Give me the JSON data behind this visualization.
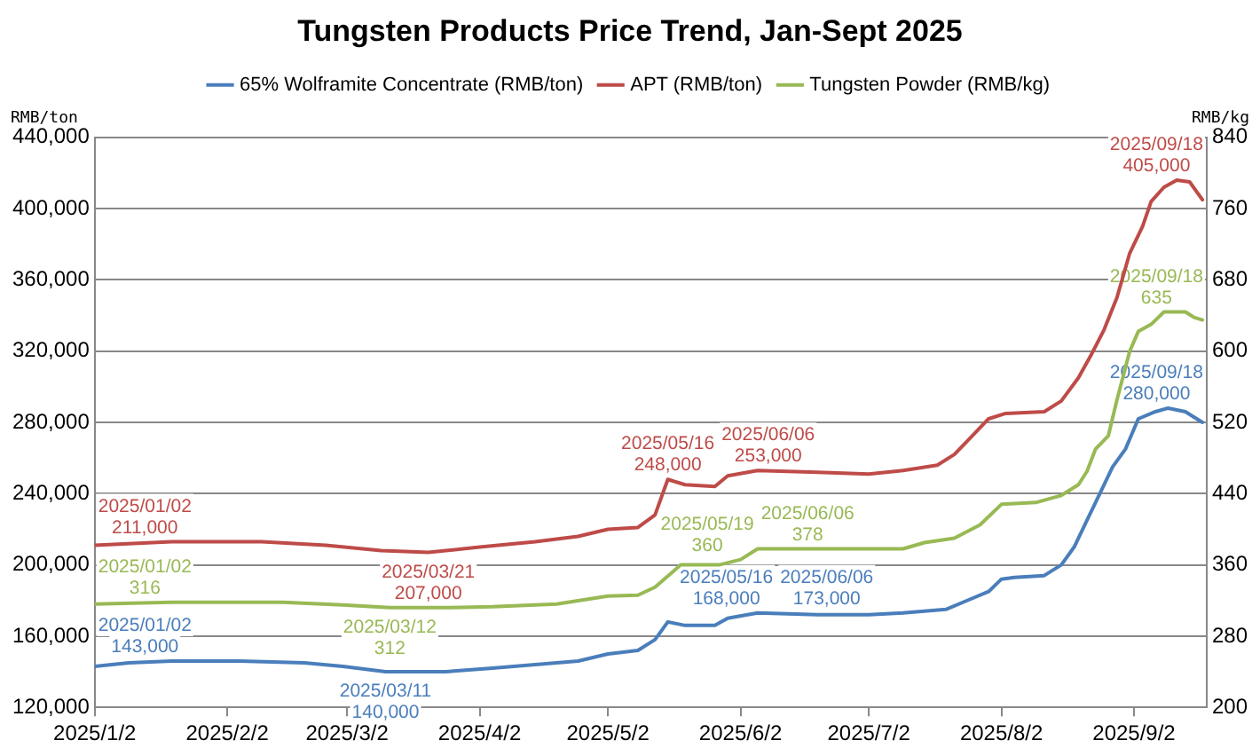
{
  "chart_data": {
    "type": "line",
    "title": "Tungsten Products Price Trend, Jan-Sept 2025",
    "ylabel": "RMB/ton",
    "y2label": "RMB/kg",
    "xlim": [
      "2025-01-02",
      "2025-09-19"
    ],
    "xticks": [
      {
        "value": "2025-01-02",
        "label": "2025/1/2"
      },
      {
        "value": "2025-02-02",
        "label": "2025/2/2"
      },
      {
        "value": "2025-03-02",
        "label": "2025/3/2"
      },
      {
        "value": "2025-04-02",
        "label": "2025/4/2"
      },
      {
        "value": "2025-05-02",
        "label": "2025/5/2"
      },
      {
        "value": "2025-06-02",
        "label": "2025/6/2"
      },
      {
        "value": "2025-07-02",
        "label": "2025/7/2"
      },
      {
        "value": "2025-08-02",
        "label": "2025/8/2"
      },
      {
        "value": "2025-09-02",
        "label": "2025/9/2"
      }
    ],
    "ylim": [
      120000,
      440000
    ],
    "yticks": [
      {
        "value": 120000,
        "label": "120,000"
      },
      {
        "value": 160000,
        "label": "160,000"
      },
      {
        "value": 200000,
        "label": "200,000"
      },
      {
        "value": 240000,
        "label": "240,000"
      },
      {
        "value": 280000,
        "label": "280,000"
      },
      {
        "value": 320000,
        "label": "320,000"
      },
      {
        "value": 360000,
        "label": "360,000"
      },
      {
        "value": 400000,
        "label": "400,000"
      },
      {
        "value": 440000,
        "label": "440,000"
      }
    ],
    "y2lim": [
      200,
      840
    ],
    "y2ticks": [
      200,
      280,
      360,
      440,
      520,
      600,
      680,
      760,
      840
    ],
    "grid": "y",
    "legend": "top",
    "marker": "none",
    "line_style": "solid",
    "series": [
      {
        "name": "65% Wolframite Concentrate (RMB/ton)",
        "color": "#4a7ebb",
        "x": [
          "2025-01-02",
          "2025-01-10",
          "2025-01-20",
          "2025-02-05",
          "2025-02-20",
          "2025-03-01",
          "2025-03-11",
          "2025-03-25",
          "2025-04-05",
          "2025-04-15",
          "2025-04-25",
          "2025-05-02",
          "2025-05-09",
          "2025-05-13",
          "2025-05-16",
          "2025-05-20",
          "2025-05-27",
          "2025-05-30",
          "2025-06-06",
          "2025-06-20",
          "2025-07-02",
          "2025-07-10",
          "2025-07-20",
          "2025-07-25",
          "2025-07-30",
          "2025-08-02",
          "2025-08-05",
          "2025-08-12",
          "2025-08-16",
          "2025-08-19",
          "2025-08-22",
          "2025-08-25",
          "2025-08-28",
          "2025-08-31",
          "2025-09-03",
          "2025-09-07",
          "2025-09-10",
          "2025-09-14",
          "2025-09-18"
        ],
        "values": [
          143000,
          145000,
          146000,
          146000,
          145000,
          143000,
          140000,
          140000,
          142000,
          144000,
          146000,
          150000,
          152000,
          158000,
          168000,
          166000,
          166000,
          170000,
          173000,
          172000,
          172000,
          173000,
          175000,
          180000,
          185000,
          192000,
          193000,
          194000,
          200000,
          210000,
          225000,
          240000,
          255000,
          265000,
          282000,
          286000,
          288000,
          286000,
          280000
        ],
        "value_labels": [
          "2025/01/02\n143,000",
          null,
          null,
          null,
          null,
          null,
          "2025/03/11\n140,000",
          null,
          null,
          null,
          null,
          null,
          null,
          null,
          "2025/05/16\n168,000",
          null,
          null,
          null,
          "2025/06/06\n173,000",
          null,
          null,
          null,
          null,
          null,
          null,
          null,
          null,
          null,
          null,
          null,
          null,
          null,
          null,
          null,
          null,
          null,
          null,
          null,
          "2025/09/18\n280,000"
        ]
      },
      {
        "name": "APT (RMB/ton)",
        "color": "#be4b48",
        "x": [
          "2025-01-02",
          "2025-01-20",
          "2025-02-10",
          "2025-02-25",
          "2025-03-10",
          "2025-03-21",
          "2025-04-02",
          "2025-04-15",
          "2025-04-25",
          "2025-05-02",
          "2025-05-09",
          "2025-05-13",
          "2025-05-16",
          "2025-05-20",
          "2025-05-27",
          "2025-05-30",
          "2025-06-06",
          "2025-06-20",
          "2025-07-02",
          "2025-07-10",
          "2025-07-18",
          "2025-07-22",
          "2025-07-26",
          "2025-07-30",
          "2025-08-03",
          "2025-08-12",
          "2025-08-16",
          "2025-08-20",
          "2025-08-23",
          "2025-08-26",
          "2025-08-29",
          "2025-09-01",
          "2025-09-04",
          "2025-09-06",
          "2025-09-09",
          "2025-09-12",
          "2025-09-15",
          "2025-09-18"
        ],
        "values": [
          211000,
          213000,
          213000,
          211000,
          208000,
          207000,
          210000,
          213000,
          216000,
          220000,
          221000,
          228000,
          248000,
          245000,
          244000,
          250000,
          253000,
          252000,
          251000,
          253000,
          256000,
          262000,
          272000,
          282000,
          285000,
          286000,
          292000,
          305000,
          318000,
          332000,
          350000,
          375000,
          390000,
          404000,
          412000,
          416000,
          415000,
          405000
        ],
        "value_labels": [
          "2025/01/02\n211,000",
          null,
          null,
          null,
          null,
          "2025/03/21\n207,000",
          null,
          null,
          null,
          null,
          null,
          null,
          "2025/05/16\n248,000",
          null,
          null,
          null,
          "2025/06/06\n253,000",
          null,
          null,
          null,
          null,
          null,
          null,
          null,
          null,
          null,
          null,
          null,
          null,
          null,
          null,
          null,
          null,
          null,
          null,
          null,
          null,
          "2025/09/18\n405,000"
        ]
      },
      {
        "name": "Tungsten Powder (RMB/kg)",
        "color": "#98b954",
        "axis": "y2",
        "x": [
          "2025-01-02",
          "2025-01-20",
          "2025-02-15",
          "2025-03-01",
          "2025-03-12",
          "2025-03-25",
          "2025-04-05",
          "2025-04-20",
          "2025-04-28",
          "2025-05-02",
          "2025-05-09",
          "2025-05-13",
          "2025-05-19",
          "2025-05-28",
          "2025-06-02",
          "2025-06-06",
          "2025-06-20",
          "2025-07-10",
          "2025-07-15",
          "2025-07-22",
          "2025-07-28",
          "2025-08-02",
          "2025-08-10",
          "2025-08-16",
          "2025-08-20",
          "2025-08-22",
          "2025-08-24",
          "2025-08-27",
          "2025-08-29",
          "2025-09-01",
          "2025-09-03",
          "2025-09-06",
          "2025-09-09",
          "2025-09-14",
          "2025-09-16",
          "2025-09-18"
        ],
        "values": [
          316,
          318,
          318,
          315,
          312,
          312,
          313,
          316,
          322,
          325,
          326,
          335,
          360,
          360,
          366,
          378,
          378,
          378,
          385,
          390,
          405,
          428,
          430,
          438,
          450,
          465,
          490,
          505,
          545,
          600,
          622,
          630,
          644,
          644,
          638,
          635
        ],
        "value_labels": [
          "2025/01/02\n316",
          null,
          null,
          null,
          "2025/03/12\n312",
          null,
          null,
          null,
          null,
          null,
          null,
          null,
          "2025/05/19\n360",
          null,
          null,
          "2025/06/06\n378",
          null,
          null,
          null,
          null,
          null,
          null,
          null,
          null,
          null,
          null,
          null,
          null,
          null,
          null,
          null,
          null,
          null,
          null,
          null,
          "2025/09/18\n635"
        ]
      }
    ]
  }
}
